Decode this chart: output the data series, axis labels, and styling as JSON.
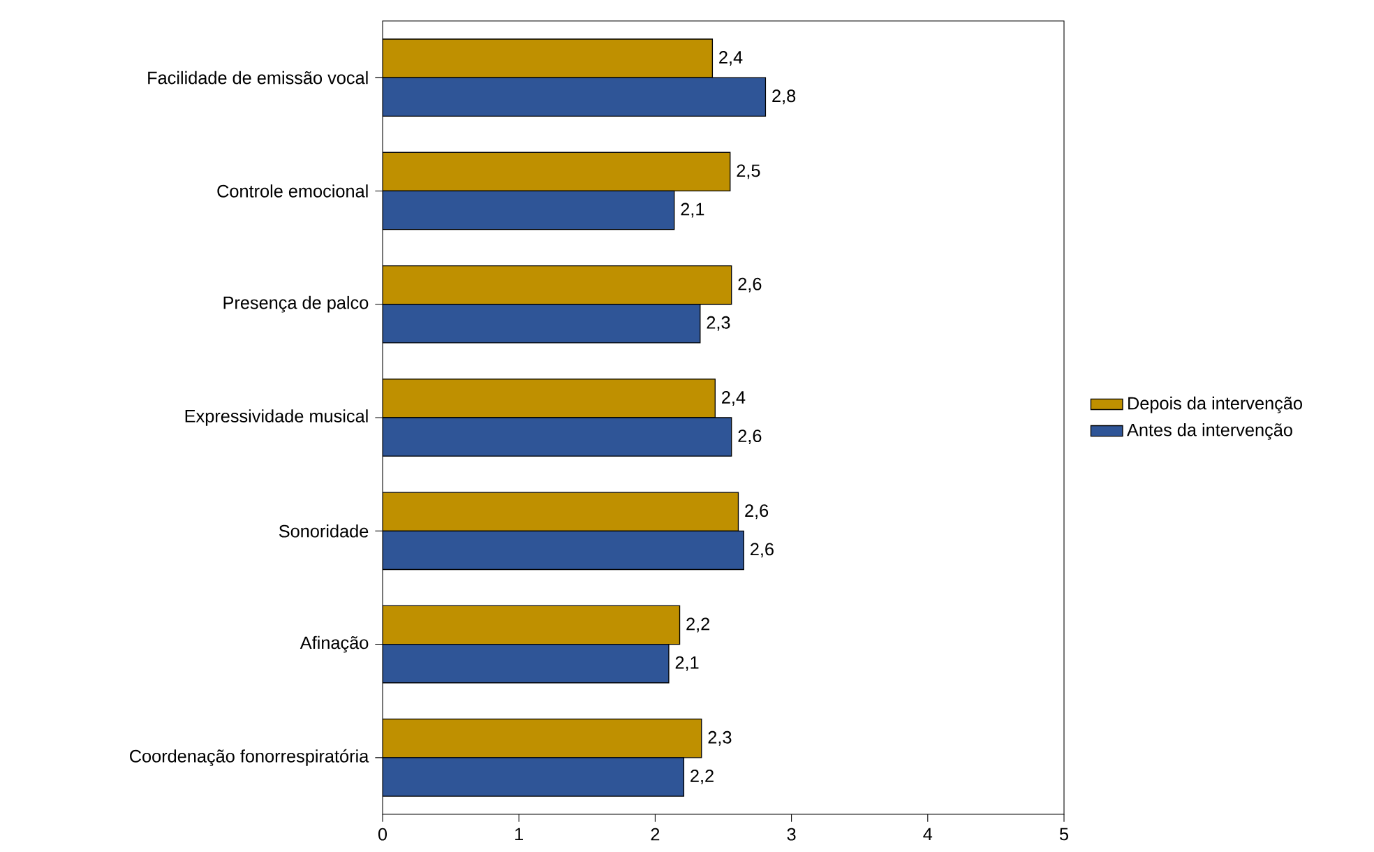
{
  "chart_data": {
    "type": "bar",
    "orientation": "horizontal",
    "categories": [
      "Facilidade de emissão vocal",
      "Controle emocional",
      "Presença de palco",
      "Expressividade musical",
      "Sonoridade",
      "Afinação",
      "Coordenação fonorrespiratória"
    ],
    "series": [
      {
        "name": "Depois da intervenção",
        "color": "#bf9000",
        "values": [
          2.42,
          2.55,
          2.56,
          2.44,
          2.61,
          2.18,
          2.34
        ],
        "value_labels": [
          "2,4",
          "2,5",
          "2,6",
          "2,4",
          "2,6",
          "2,2",
          "2,3"
        ]
      },
      {
        "name": "Antes da intervenção",
        "color": "#2f5597",
        "values": [
          2.81,
          2.14,
          2.33,
          2.56,
          2.65,
          2.1,
          2.21
        ],
        "value_labels": [
          "2,8",
          "2,1",
          "2,3",
          "2,6",
          "2,6",
          "2,1",
          "2,2"
        ]
      }
    ],
    "xlim": [
      0,
      5
    ],
    "xticks": [
      0,
      1,
      2,
      3,
      4,
      5
    ],
    "grid": false,
    "legend": "right"
  }
}
